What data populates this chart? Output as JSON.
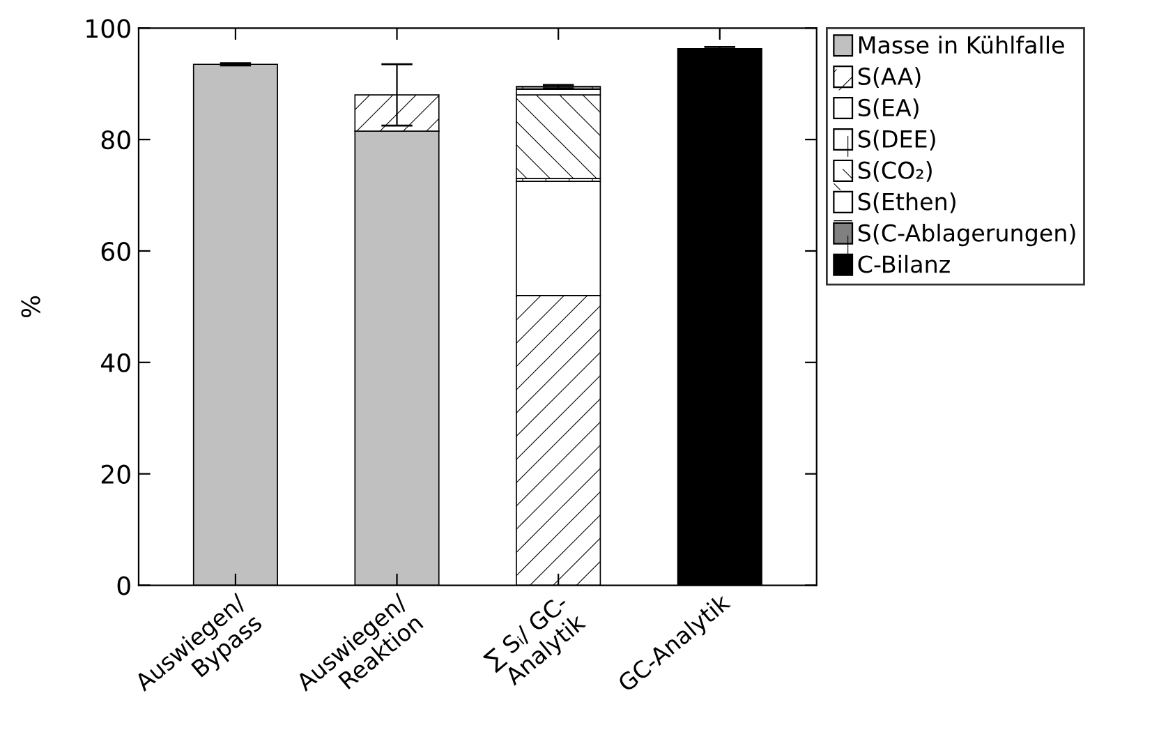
{
  "chart_data": {
    "type": "bar",
    "stacked": true,
    "ylabel": "%",
    "categories": [
      "Auswiegen/\nBypass",
      "Auswiegen/\nReaktion",
      "∑ Sᵢ/ GC-\nAnalytik",
      "GC-Analytik"
    ],
    "series": [
      {
        "name": "Masse in Kühlfalle",
        "color": "#c0c0c0",
        "values": [
          93.5,
          81.5,
          null,
          null
        ],
        "errors": [
          0.2,
          null,
          null,
          null
        ]
      },
      {
        "name": "S(AA)",
        "color": "#ffffff",
        "values": [
          null,
          6.5,
          52,
          null
        ],
        "errors": [
          null,
          5.5,
          null,
          null
        ]
      },
      {
        "name": "S(EA)",
        "color": "#ffffff",
        "values": [
          null,
          null,
          20.5,
          null
        ]
      },
      {
        "name": "S(DEE)",
        "color": "#ffffff",
        "values": [
          null,
          null,
          0.5,
          null
        ]
      },
      {
        "name": "S(CO₂)",
        "color": "#ffffff",
        "values": [
          null,
          null,
          15,
          null
        ]
      },
      {
        "name": "S(Ethen)",
        "color": "#ffffff",
        "values": [
          null,
          null,
          1,
          null
        ]
      },
      {
        "name": "S(C-Ablagerungen)",
        "color": "#808080",
        "values": [
          null,
          null,
          0.5,
          null
        ],
        "errors": [
          null,
          null,
          0.3,
          null
        ]
      },
      {
        "name": "C-Bilanz",
        "color": "#000000",
        "values": [
          null,
          null,
          null,
          96.3
        ],
        "errors": [
          null,
          null,
          null,
          0.3
        ]
      }
    ],
    "ylim": [
      0,
      100
    ],
    "yticks": [
      0,
      20,
      40,
      60,
      80,
      100
    ],
    "grid": false,
    "legend": "right"
  }
}
